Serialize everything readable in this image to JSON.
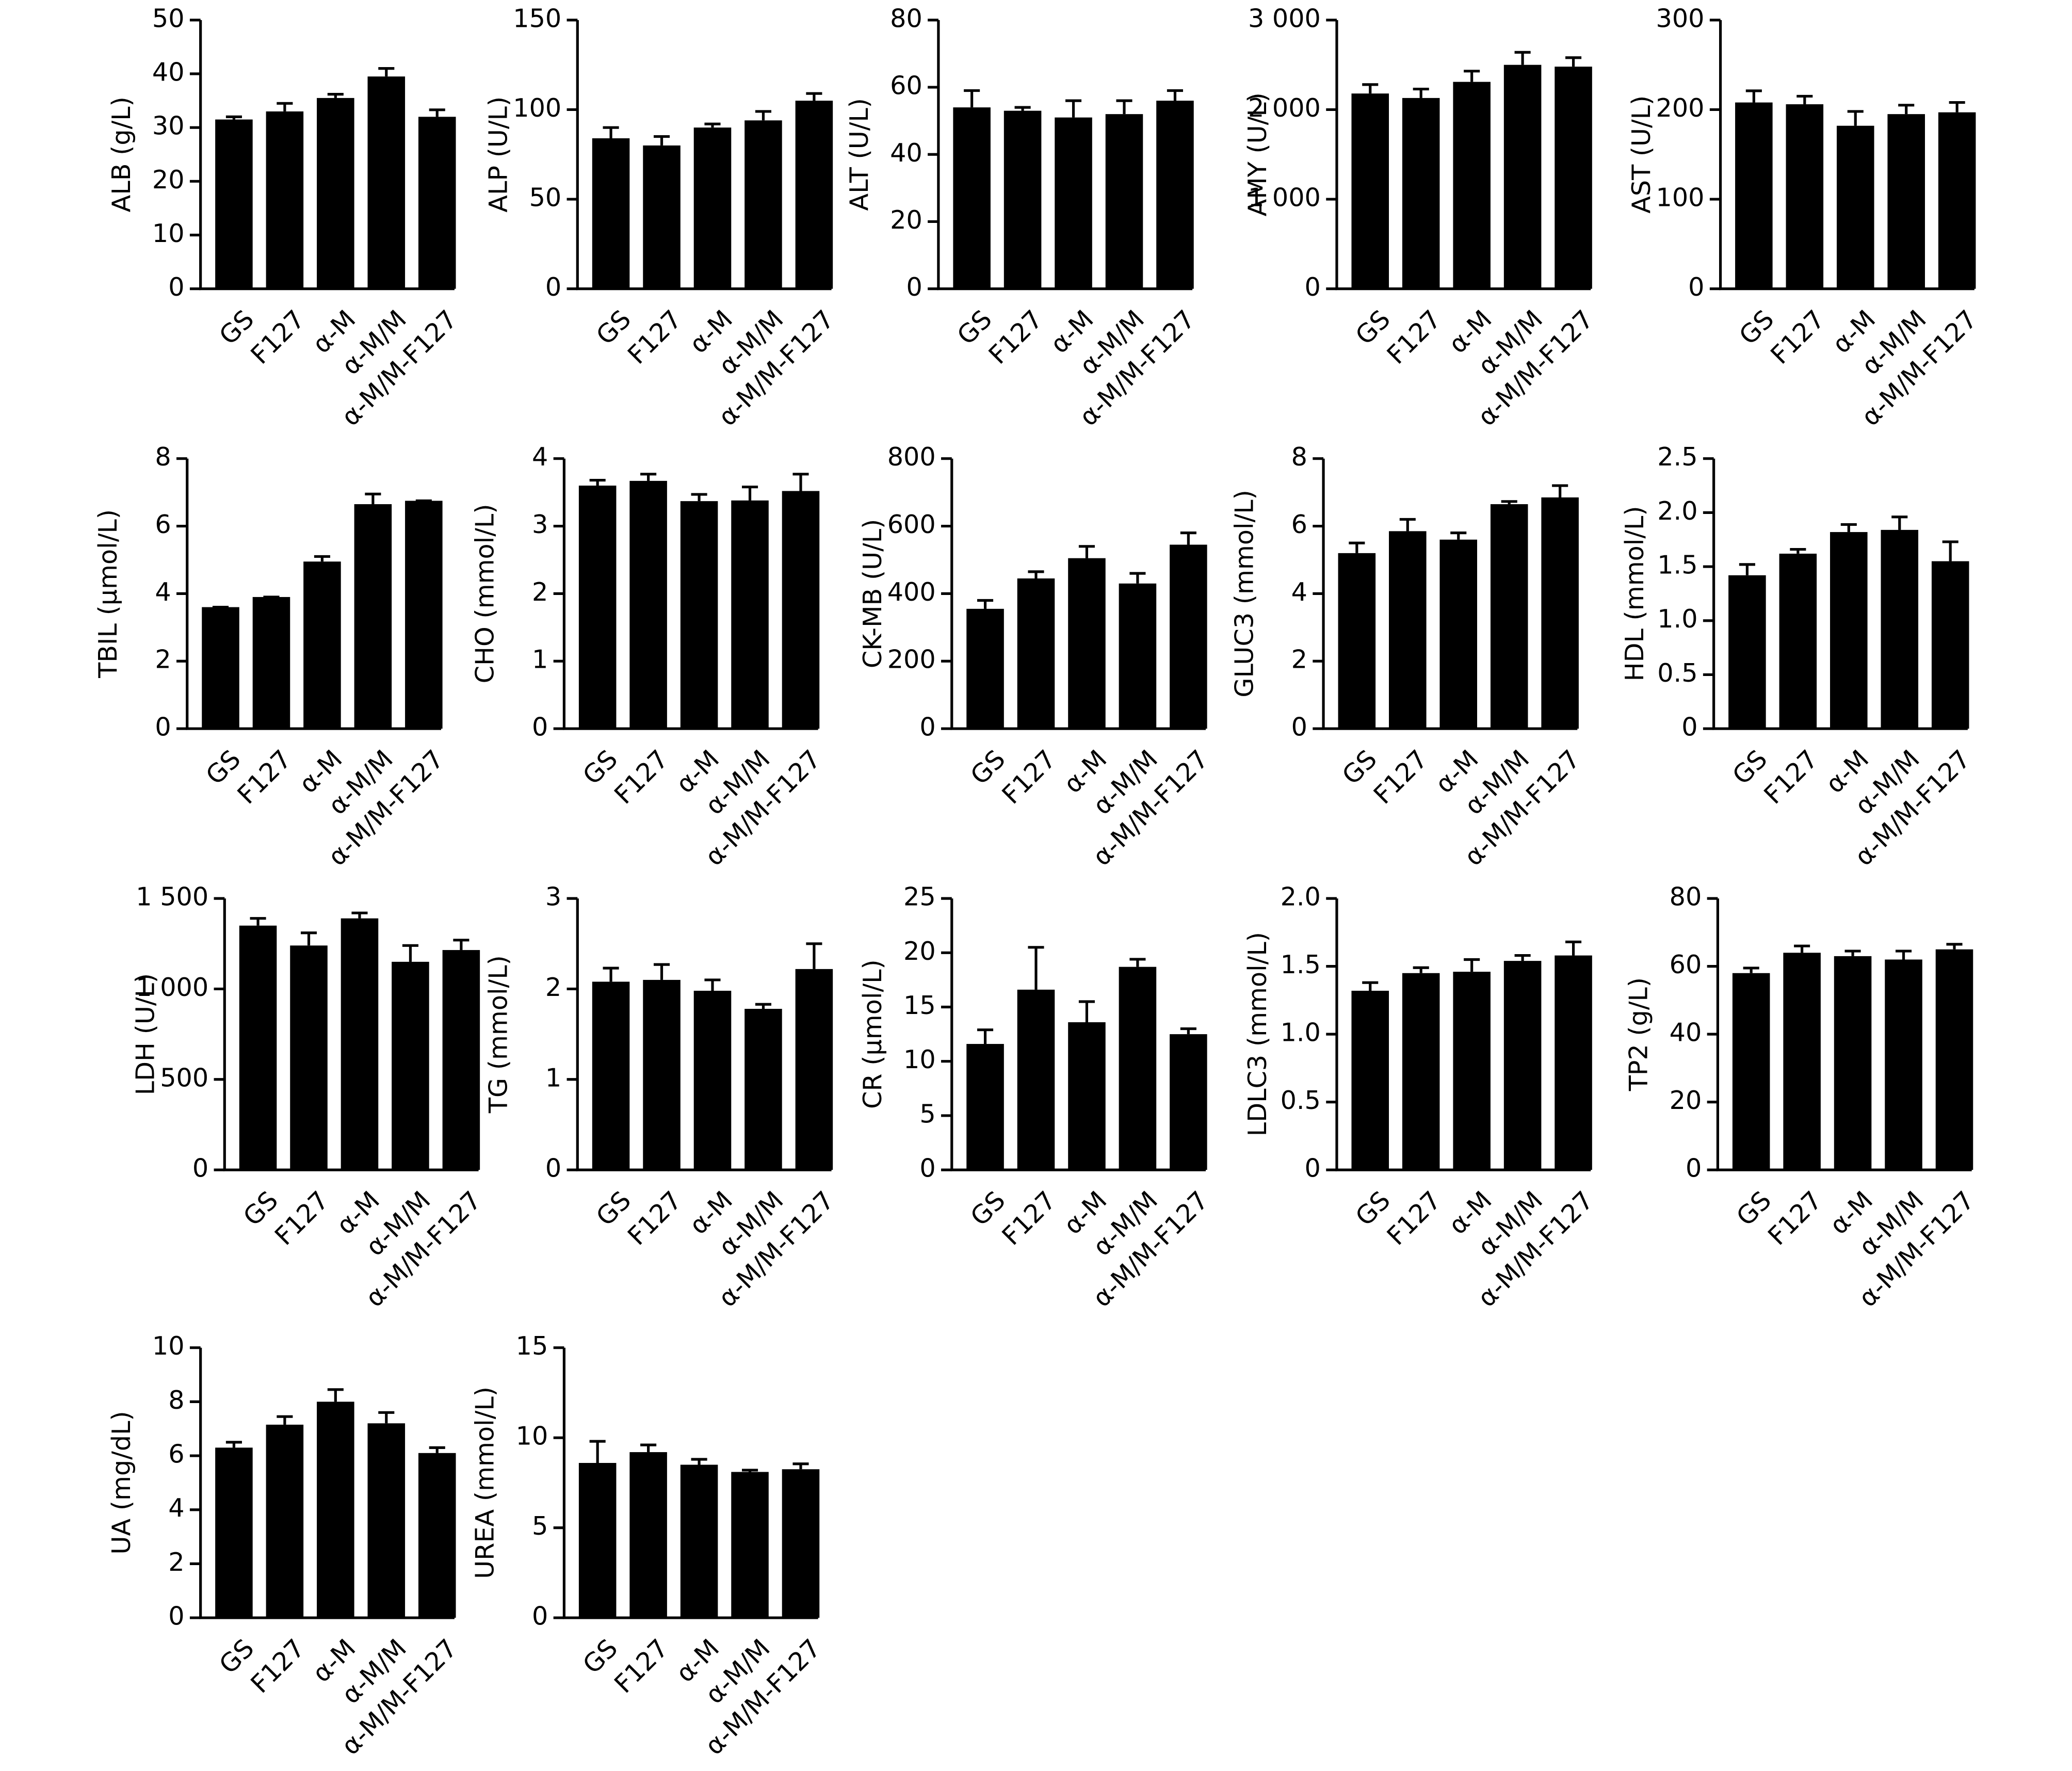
{
  "chart_data": [
    {
      "type": "bar",
      "ylabel": "ALB (g/L)",
      "categories": [
        "GS",
        "F127",
        "α-M",
        "α-M/M",
        "α-M/M-F127"
      ],
      "values": [
        31.5,
        33,
        35.5,
        39.5,
        32
      ],
      "errors": [
        0.5,
        1.5,
        0.7,
        1.5,
        1.3
      ],
      "color": "#000000",
      "ylim": [
        0,
        50
      ],
      "yticks": [
        0,
        10,
        20,
        30,
        40,
        50
      ]
    },
    {
      "type": "bar",
      "ylabel": "ALP (U/L)",
      "categories": [
        "GS",
        "F127",
        "α-M",
        "α-M/M",
        "α-M/M-F127"
      ],
      "values": [
        84,
        80,
        90,
        94,
        105
      ],
      "errors": [
        6,
        5,
        2,
        5,
        4
      ],
      "color": "#000000",
      "ylim": [
        0,
        150
      ],
      "yticks": [
        0,
        50,
        100,
        150
      ]
    },
    {
      "type": "bar",
      "ylabel": "ALT (U/L)",
      "categories": [
        "GS",
        "F127",
        "α-M",
        "α-M/M",
        "α-M/M-F127"
      ],
      "values": [
        54,
        53,
        51,
        52,
        56
      ],
      "errors": [
        5,
        1,
        5,
        4,
        3
      ],
      "color": "#000000",
      "ylim": [
        0,
        80
      ],
      "yticks": [
        0,
        20,
        40,
        60,
        80
      ]
    },
    {
      "type": "bar",
      "ylabel": "AMY (U/L)",
      "categories": [
        "GS",
        "F127",
        "α-M",
        "α-M/M",
        "α-M/M-F127"
      ],
      "values": [
        2180,
        2130,
        2310,
        2500,
        2480
      ],
      "errors": [
        100,
        100,
        120,
        140,
        100
      ],
      "color": "#000000",
      "ylim": [
        0,
        3000
      ],
      "yticks": [
        0,
        {
          "value": 1000,
          "label": "1 000"
        },
        {
          "value": 2000,
          "label": "2 000"
        },
        {
          "value": 3000,
          "label": "3 000"
        }
      ]
    },
    {
      "type": "bar",
      "ylabel": "AST (U/L)",
      "categories": [
        "GS",
        "F127",
        "α-M",
        "α-M/M",
        "α-M/M-F127"
      ],
      "values": [
        208,
        206,
        182,
        195,
        197
      ],
      "errors": [
        13,
        9,
        16,
        10,
        11
      ],
      "color": "#000000",
      "ylim": [
        0,
        300
      ],
      "yticks": [
        0,
        100,
        200,
        300
      ]
    },
    {
      "type": "bar",
      "ylabel": "TBIL (μmol/L)",
      "categories": [
        "GS",
        "F127",
        "α-M",
        "α-M/M",
        "α-M/M-F127"
      ],
      "values": [
        3.6,
        3.9,
        4.95,
        6.65,
        6.75
      ],
      "errors": [
        0,
        0,
        0.15,
        0.3,
        0
      ],
      "color": "#000000",
      "ylim": [
        0,
        8
      ],
      "yticks": [
        0,
        2,
        4,
        6,
        8
      ]
    },
    {
      "type": "bar",
      "ylabel": "CHO (mmol/L)",
      "categories": [
        "GS",
        "F127",
        "α-M",
        "α-M/M",
        "α-M/M-F127"
      ],
      "values": [
        3.6,
        3.67,
        3.37,
        3.38,
        3.52
      ],
      "errors": [
        0.08,
        0.1,
        0.1,
        0.2,
        0.25
      ],
      "color": "#000000",
      "ylim": [
        0,
        4
      ],
      "yticks": [
        0,
        1,
        2,
        3,
        4
      ]
    },
    {
      "type": "bar",
      "ylabel": "CK-MB (U/L)",
      "categories": [
        "GS",
        "F127",
        "α-M",
        "α-M/M",
        "α-M/M-F127"
      ],
      "values": [
        355,
        445,
        505,
        430,
        545
      ],
      "errors": [
        25,
        20,
        35,
        30,
        35
      ],
      "color": "#000000",
      "ylim": [
        0,
        800
      ],
      "yticks": [
        0,
        200,
        400,
        600,
        800
      ]
    },
    {
      "type": "bar",
      "ylabel": "GLUC3 (mmol/L)",
      "categories": [
        "GS",
        "F127",
        "α-M",
        "α-M/M",
        "α-M/M-F127"
      ],
      "values": [
        5.2,
        5.85,
        5.6,
        6.65,
        6.85
      ],
      "errors": [
        0.3,
        0.35,
        0.2,
        0.08,
        0.35
      ],
      "color": "#000000",
      "ylim": [
        0,
        8
      ],
      "yticks": [
        0,
        2,
        4,
        6,
        8
      ]
    },
    {
      "type": "bar",
      "ylabel": "HDL (mmol/L)",
      "categories": [
        "GS",
        "F127",
        "α-M",
        "α-M/M",
        "α-M/M-F127"
      ],
      "values": [
        1.42,
        1.62,
        1.82,
        1.84,
        1.55
      ],
      "errors": [
        0.1,
        0.04,
        0.07,
        0.12,
        0.18
      ],
      "color": "#000000",
      "ylim": [
        0,
        2.5
      ],
      "yticks": [
        0,
        0.5,
        {
          "value": 1,
          "label": "1.0"
        },
        1.5,
        {
          "value": 2,
          "label": "2.0"
        },
        2.5
      ]
    },
    {
      "type": "bar",
      "ylabel": "LDH (U/L)",
      "categories": [
        "GS",
        "F127",
        "α-M",
        "α-M/M",
        "α-M/M-F127"
      ],
      "values": [
        1350,
        1240,
        1390,
        1150,
        1215
      ],
      "errors": [
        40,
        70,
        30,
        90,
        55
      ],
      "color": "#000000",
      "ylim": [
        0,
        1500
      ],
      "yticks": [
        0,
        500,
        {
          "value": 1000,
          "label": "1 000"
        },
        {
          "value": 1500,
          "label": "1 500"
        }
      ]
    },
    {
      "type": "bar",
      "ylabel": "TG (mmol/L)",
      "categories": [
        "GS",
        "F127",
        "α-M",
        "α-M/M",
        "α-M/M-F127"
      ],
      "values": [
        2.08,
        2.1,
        1.98,
        1.78,
        2.22
      ],
      "errors": [
        0.15,
        0.17,
        0.12,
        0.05,
        0.28
      ],
      "color": "#000000",
      "ylim": [
        0,
        3
      ],
      "yticks": [
        0,
        1,
        2,
        3
      ]
    },
    {
      "type": "bar",
      "ylabel": "CR (μmol/L)",
      "categories": [
        "GS",
        "F127",
        "α-M",
        "α-M/M",
        "α-M/M-F127"
      ],
      "values": [
        11.6,
        16.6,
        13.6,
        18.7,
        12.5
      ],
      "errors": [
        1.3,
        3.9,
        1.9,
        0.7,
        0.5
      ],
      "color": "#000000",
      "ylim": [
        0,
        25
      ],
      "yticks": [
        0,
        5,
        10,
        15,
        20,
        25
      ]
    },
    {
      "type": "bar",
      "ylabel": "LDLC3 (mmol/L)",
      "categories": [
        "GS",
        "F127",
        "α-M",
        "α-M/M",
        "α-M/M-F127"
      ],
      "values": [
        1.32,
        1.45,
        1.46,
        1.54,
        1.58
      ],
      "errors": [
        0.06,
        0.04,
        0.09,
        0.04,
        0.1
      ],
      "color": "#000000",
      "ylim": [
        0,
        2
      ],
      "yticks": [
        0,
        0.5,
        {
          "value": 1,
          "label": "1.0"
        },
        1.5,
        {
          "value": 2,
          "label": "2.0"
        }
      ]
    },
    {
      "type": "bar",
      "ylabel": "TP2 (g/L)",
      "categories": [
        "GS",
        "F127",
        "α-M",
        "α-M/M",
        "α-M/M-F127"
      ],
      "values": [
        58,
        64,
        63,
        62,
        65
      ],
      "errors": [
        1.5,
        2,
        1.5,
        2.5,
        1.5
      ],
      "color": "#000000",
      "ylim": [
        0,
        80
      ],
      "yticks": [
        0,
        20,
        40,
        60,
        80
      ]
    },
    {
      "type": "bar",
      "ylabel": "UA (mg/dL)",
      "categories": [
        "GS",
        "F127",
        "α-M",
        "α-M/M",
        "α-M/M-F127"
      ],
      "values": [
        6.3,
        7.15,
        8,
        7.2,
        6.1
      ],
      "errors": [
        0.2,
        0.3,
        0.45,
        0.4,
        0.2
      ],
      "color": "#000000",
      "ylim": [
        0,
        10
      ],
      "yticks": [
        0,
        2,
        4,
        6,
        8,
        10
      ]
    },
    {
      "type": "bar",
      "ylabel": "UREA (mmol/L)",
      "categories": [
        "GS",
        "F127",
        "α-M",
        "α-M/M",
        "α-M/M-F127"
      ],
      "values": [
        8.6,
        9.2,
        8.5,
        8.1,
        8.25
      ],
      "errors": [
        1.2,
        0.4,
        0.3,
        0.1,
        0.3
      ],
      "color": "#000000",
      "ylim": [
        0,
        15
      ],
      "yticks": [
        0,
        5,
        10,
        15
      ]
    }
  ]
}
